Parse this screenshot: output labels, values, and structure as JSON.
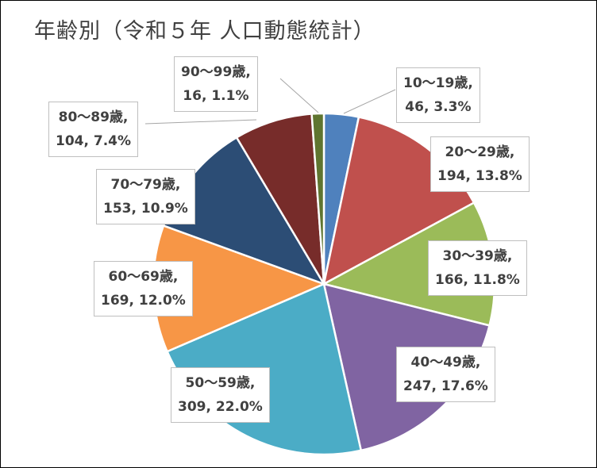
{
  "chart_data": {
    "type": "pie",
    "title": "年齢別（令和５年 人口動態統計）",
    "slices": [
      {
        "category": "10～19歳",
        "value": 46,
        "percent": "3.3%",
        "color": "#4f81bd"
      },
      {
        "category": "20～29歳",
        "value": 194,
        "percent": "13.8%",
        "color": "#c0504d"
      },
      {
        "category": "30～39歳",
        "value": 166,
        "percent": "11.8%",
        "color": "#9bbb59"
      },
      {
        "category": "40～49歳",
        "value": 247,
        "percent": "17.6%",
        "color": "#8064a2"
      },
      {
        "category": "50～59歳",
        "value": 309,
        "percent": "22.0%",
        "color": "#4bacc6"
      },
      {
        "category": "60～69歳",
        "value": 169,
        "percent": "12.0%",
        "color": "#f79646"
      },
      {
        "category": "70～79歳",
        "value": 153,
        "percent": "10.9%",
        "color": "#2c4d75"
      },
      {
        "category": "80～89歳",
        "value": 104,
        "percent": "7.4%",
        "color": "#772c2a"
      },
      {
        "category": "90～99歳",
        "value": 16,
        "percent": "1.1%",
        "color": "#5f7530"
      }
    ],
    "start_angle": "12 o'clock",
    "direction": "clockwise",
    "legend": "none",
    "data_labels": "category, value, percent"
  }
}
